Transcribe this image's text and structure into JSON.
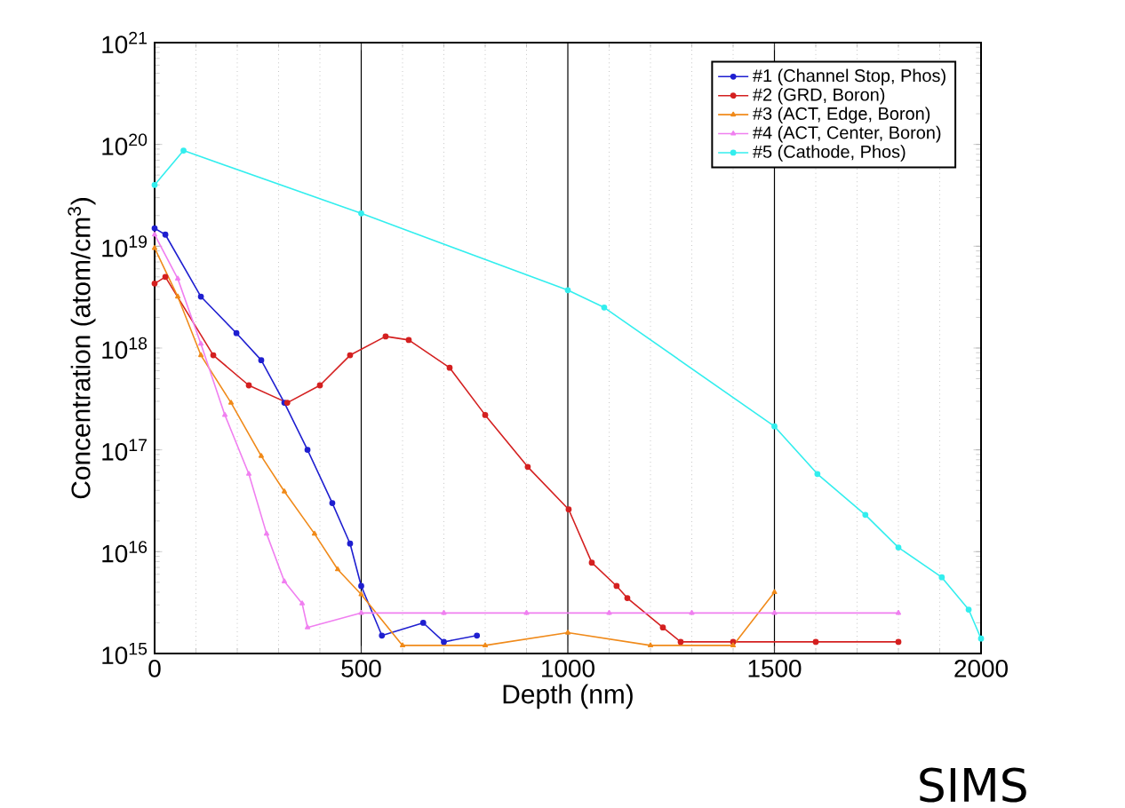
{
  "chart_data": {
    "type": "line",
    "xlabel": "Depth (nm)",
    "ylabel": "Concentration (atom/cm$^{3}$)",
    "log": "y",
    "grid": "x",
    "legend": "top right",
    "line_style": "solid",
    "xlim": [
      0,
      2000
    ],
    "xticks": [
      0,
      500,
      1000,
      1500,
      2000
    ],
    "ylim": [
      1000000000000000.0,
      1e+21
    ],
    "yticks": [
      {
        "value": 1000000000000000.0,
        "label": "10$^{15}$"
      },
      {
        "value": 1e+16,
        "label": "10$^{16}$"
      },
      {
        "value": 1e+17,
        "label": "10$^{17}$"
      },
      {
        "value": 1e+18,
        "label": "10$^{18}$"
      },
      {
        "value": 1e+19,
        "label": "10$^{19}$"
      },
      {
        "value": 1e+20,
        "label": "10$^{20}$"
      },
      {
        "value": 1e+21,
        "label": "10$^{21}$"
      }
    ],
    "annotations": [
      "SIMS"
    ],
    "series": [
      {
        "name": "#1 (Channel Stop, Phos)",
        "color": "#1f1fd0",
        "marker": "circle",
        "x": [
          0,
          26,
          112,
          198,
          258,
          314,
          370,
          430,
          473,
          500,
          550,
          650,
          700,
          780
        ],
        "values": [
          1.5e+19,
          1.3e+19,
          3.2e+18,
          1.4e+18,
          7.6e+17,
          2.9e+17,
          1e+17,
          3e+16,
          1.2e+16,
          4600000000000000.0,
          1500000000000000.0,
          2000000000000000.0,
          1300000000000000.0,
          1500000000000000.0
        ]
      },
      {
        "name": "#2 (GRD, Boron)",
        "color": "#d42020",
        "marker": "circle",
        "x": [
          0,
          26,
          142,
          228,
          321,
          400,
          473,
          559,
          615,
          714,
          800,
          903,
          1002,
          1058,
          1118,
          1144,
          1230,
          1273,
          1400,
          1600,
          1800
        ],
        "values": [
          4.3e+18,
          5e+18,
          8.5e+17,
          4.3e+17,
          2.9e+17,
          4.3e+17,
          8.5e+17,
          1.3e+18,
          1.2e+18,
          6.4e+17,
          2.2e+17,
          6.8e+16,
          2.6e+16,
          7800000000000000.0,
          4600000000000000.0,
          3500000000000000.0,
          1800000000000000.0,
          1300000000000000.0,
          1300000000000000.0,
          1300000000000000.0,
          1300000000000000.0
        ]
      },
      {
        "name": "#3 (ACT, Edge, Boron)",
        "color": "#f08a1a",
        "marker": "triangle",
        "x": [
          0,
          56,
          112,
          185,
          258,
          314,
          387,
          443,
          500,
          600,
          800,
          1000,
          1200,
          1400,
          1500
        ],
        "values": [
          9.6e+18,
          3.2e+18,
          8.5e+17,
          2.9e+17,
          8.7e+16,
          3.9e+16,
          1.5e+16,
          6700000000000000.0,
          3800000000000000.0,
          1200000000000000.0,
          1200000000000000.0,
          1600000000000000.0,
          1200000000000000.0,
          1200000000000000.0,
          4000000000000000.0
        ]
      },
      {
        "name": "#4 (ACT, Center, Boron)",
        "color": "#f07ff0",
        "marker": "triangle",
        "x": [
          0,
          56,
          112,
          170,
          228,
          271,
          314,
          357,
          370,
          500,
          700,
          900,
          1100,
          1300,
          1500,
          1800
        ],
        "values": [
          1.3e+19,
          4.8e+18,
          1.1e+18,
          2.2e+17,
          5.8e+16,
          1.5e+16,
          5100000000000000.0,
          3100000000000000.0,
          1800000000000000.0,
          2500000000000000.0,
          2500000000000000.0,
          2500000000000000.0,
          2500000000000000.0,
          2500000000000000.0,
          2500000000000000.0,
          2500000000000000.0
        ]
      },
      {
        "name": "#5 (Cathode, Phos)",
        "color": "#33eeee",
        "marker": "circle",
        "x": [
          0,
          70,
          500,
          1000,
          1088,
          1500,
          1604,
          1720,
          1800,
          1905,
          1970,
          2000
        ],
        "values": [
          4e+19,
          8.7e+19,
          2.1e+19,
          3.7e+18,
          2.5e+18,
          1.7e+17,
          5.8e+16,
          2.3e+16,
          1.1e+16,
          5600000000000000.0,
          2700000000000000.0,
          1400000000000000.0
        ]
      }
    ]
  }
}
